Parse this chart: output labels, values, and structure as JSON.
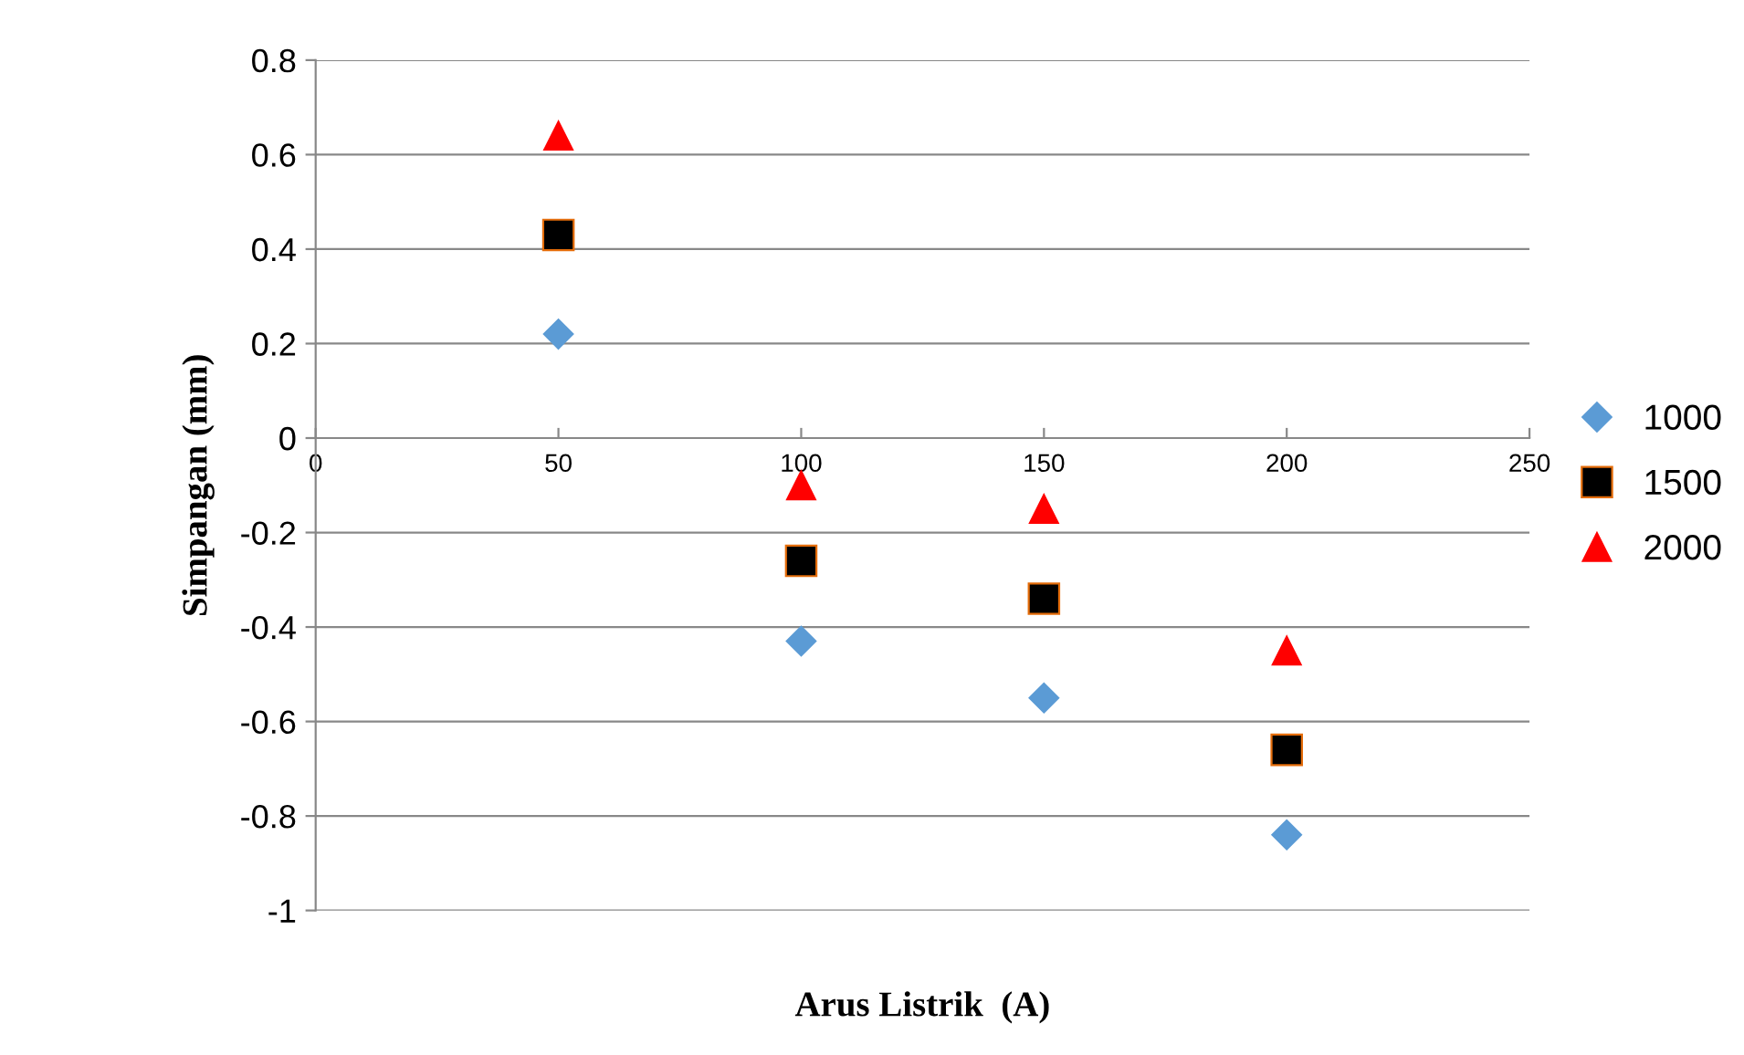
{
  "chart_data": {
    "type": "scatter",
    "xlabel": "Arus Listrik  (A)",
    "ylabel": "Simpangan (mm)",
    "x": [
      50,
      100,
      150,
      200
    ],
    "series": [
      {
        "name": "1000",
        "color": "#5b9bd5",
        "marker": "diamond",
        "values": [
          0.22,
          -0.43,
          -0.55,
          -0.84
        ]
      },
      {
        "name": "1500",
        "color": "#000000",
        "marker": "square",
        "values": [
          0.43,
          -0.26,
          -0.34,
          -0.66
        ]
      },
      {
        "name": "2000",
        "color": "#ff0000",
        "marker": "triangle",
        "values": [
          0.64,
          -0.1,
          -0.15,
          -0.45
        ]
      }
    ],
    "xlim": [
      0,
      250
    ],
    "xticks": [
      0,
      50,
      100,
      150,
      200,
      250
    ],
    "ylim": [
      -1,
      0.8
    ],
    "yticks": [
      0.8,
      0.6,
      0.4,
      0.2,
      0,
      -0.2,
      -0.4,
      -0.6,
      -0.8,
      -1
    ],
    "grid": "y",
    "legend": "right"
  }
}
